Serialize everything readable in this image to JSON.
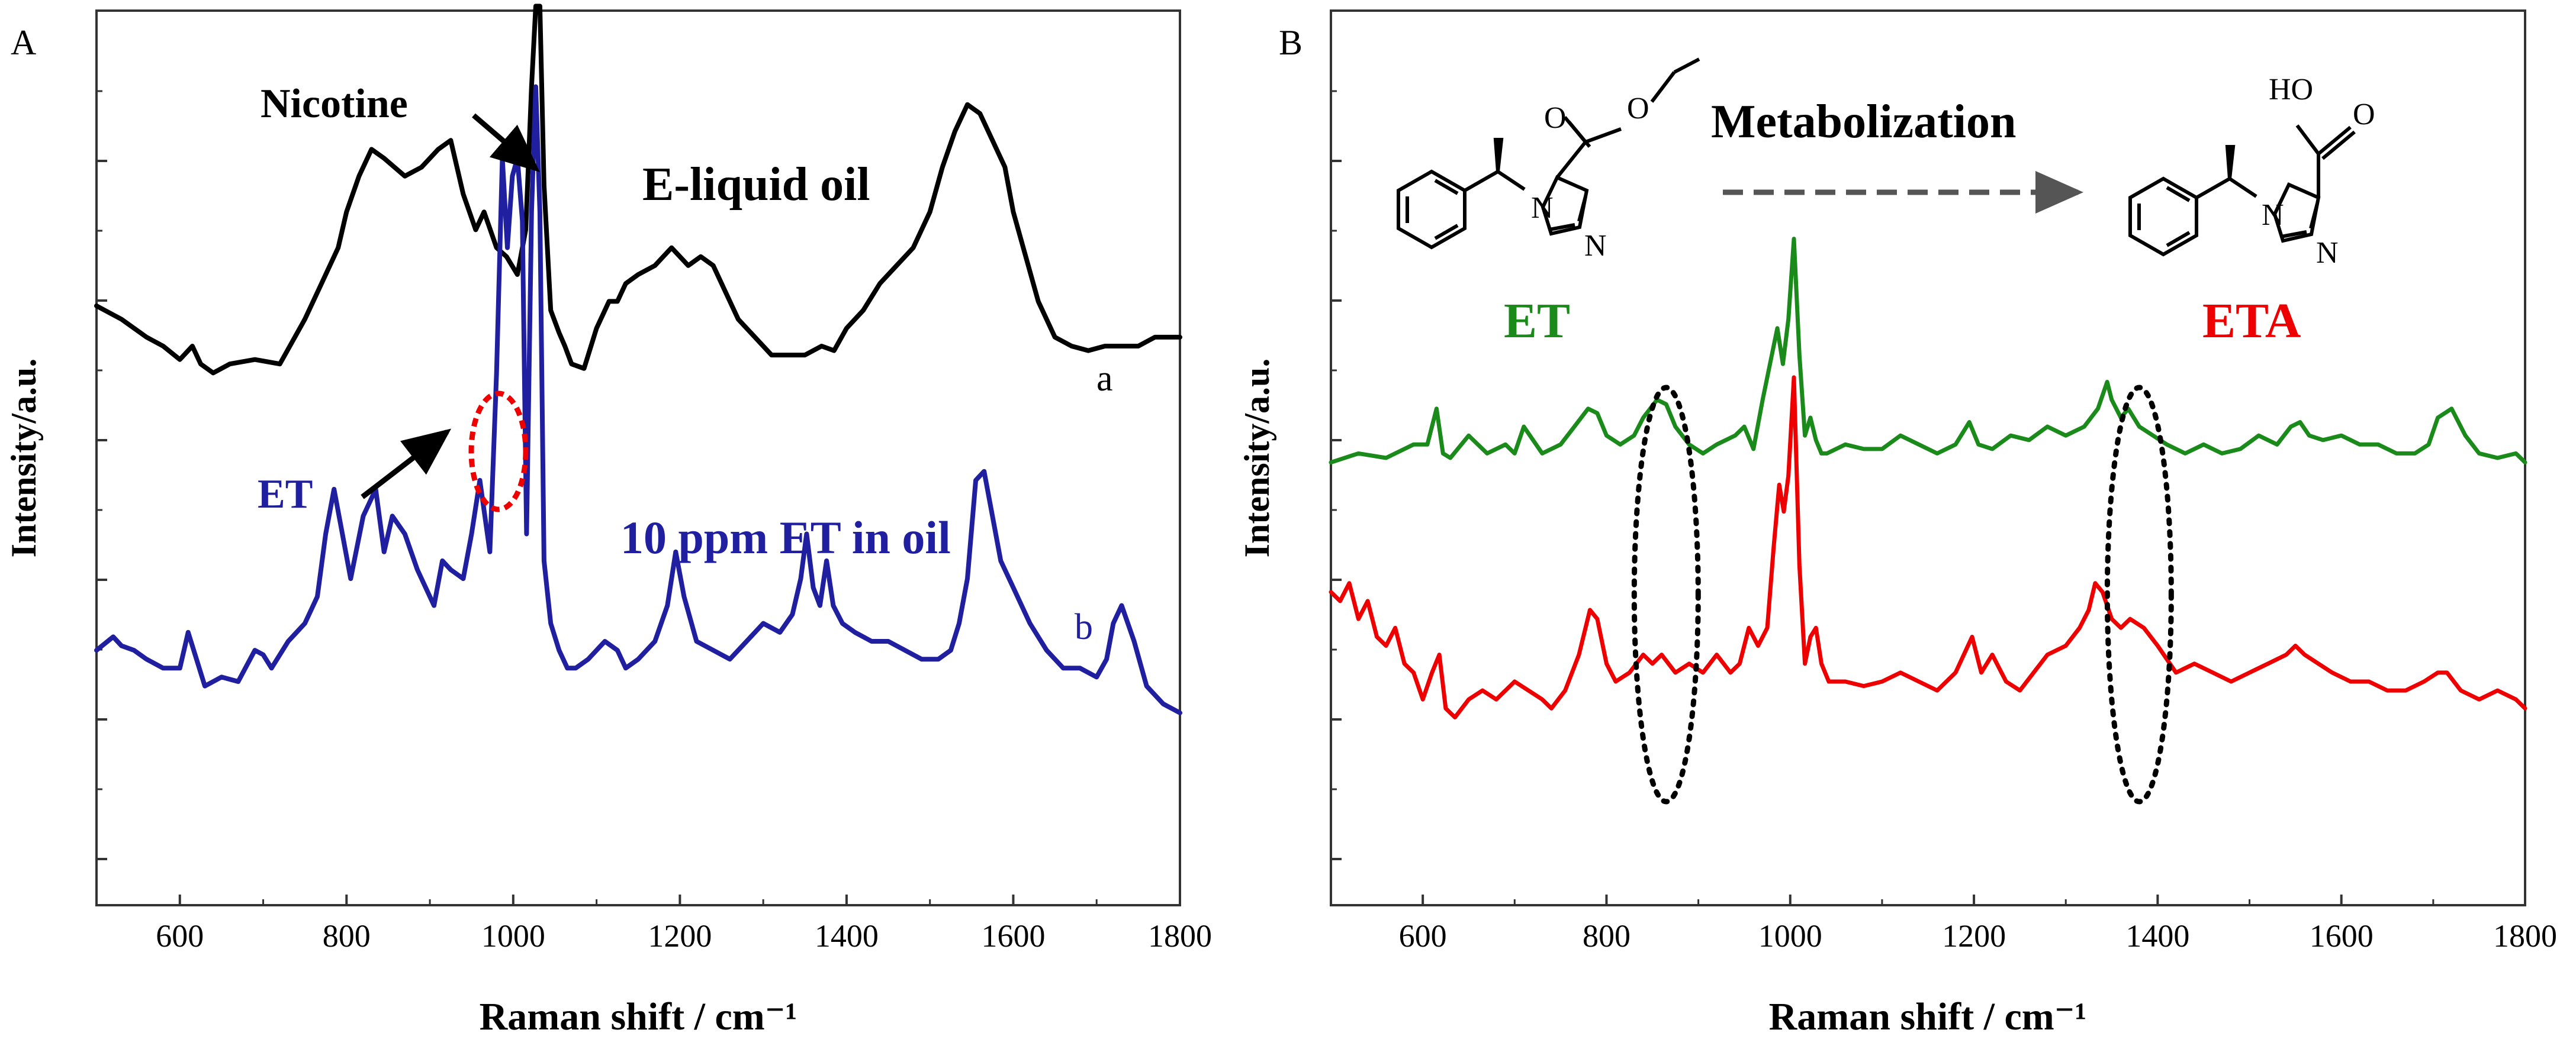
{
  "chart_data": [
    {
      "panel": "A",
      "type": "line",
      "xlabel": "Raman shift / cm⁻¹",
      "ylabel": "Intensity/a.u.",
      "xlim": [
        500,
        1800
      ],
      "ylim": [
        0,
        1
      ],
      "xticks": [
        600,
        800,
        1000,
        1200,
        1400,
        1600,
        1800
      ],
      "grid": false,
      "series": [
        {
          "name": "E-liquid oil",
          "label": "a",
          "color": "#000000",
          "offset": 0.555,
          "x": [
            500,
            530,
            560,
            580,
            600,
            615,
            625,
            640,
            660,
            690,
            720,
            750,
            770,
            790,
            800,
            815,
            830,
            845,
            870,
            890,
            910,
            925,
            940,
            955,
            965,
            980,
            992,
            1005,
            1015,
            1022,
            1027,
            1032,
            1037,
            1045,
            1055,
            1062,
            1070,
            1085,
            1100,
            1115,
            1125,
            1135,
            1150,
            1170,
            1190,
            1210,
            1225,
            1240,
            1255,
            1270,
            1290,
            1310,
            1330,
            1350,
            1370,
            1385,
            1400,
            1420,
            1440,
            1460,
            1480,
            1500,
            1515,
            1530,
            1545,
            1560,
            1575,
            1590,
            1600,
            1615,
            1630,
            1650,
            1670,
            1690,
            1710,
            1730,
            1750,
            1770,
            1800
          ],
          "y": [
            0.115,
            0.1,
            0.08,
            0.07,
            0.055,
            0.07,
            0.05,
            0.04,
            0.05,
            0.055,
            0.05,
            0.1,
            0.14,
            0.18,
            0.22,
            0.26,
            0.29,
            0.28,
            0.26,
            0.27,
            0.29,
            0.3,
            0.24,
            0.2,
            0.22,
            0.18,
            0.17,
            0.15,
            0.2,
            0.36,
            0.45,
            0.45,
            0.25,
            0.11,
            0.085,
            0.07,
            0.05,
            0.045,
            0.09,
            0.12,
            0.12,
            0.14,
            0.15,
            0.16,
            0.18,
            0.16,
            0.17,
            0.16,
            0.13,
            0.1,
            0.08,
            0.06,
            0.06,
            0.06,
            0.07,
            0.065,
            0.09,
            0.11,
            0.14,
            0.16,
            0.18,
            0.22,
            0.27,
            0.31,
            0.34,
            0.33,
            0.3,
            0.27,
            0.22,
            0.17,
            0.12,
            0.08,
            0.07,
            0.065,
            0.07,
            0.07,
            0.07,
            0.08,
            0.08
          ]
        },
        {
          "name": "10 ppm ET in oil",
          "label": "b",
          "color": "#1f1fa0",
          "offset": 0.215,
          "x": [
            500,
            520,
            530,
            545,
            560,
            580,
            600,
            610,
            620,
            630,
            650,
            670,
            690,
            700,
            710,
            730,
            750,
            765,
            775,
            785,
            795,
            805,
            820,
            835,
            845,
            855,
            870,
            885,
            895,
            905,
            915,
            925,
            940,
            950,
            960,
            972,
            980,
            987,
            993,
            999,
            1005,
            1011,
            1016,
            1022,
            1027,
            1032,
            1037,
            1045,
            1055,
            1065,
            1075,
            1090,
            1110,
            1125,
            1135,
            1150,
            1170,
            1185,
            1195,
            1205,
            1220,
            1240,
            1260,
            1280,
            1300,
            1320,
            1335,
            1345,
            1352,
            1360,
            1368,
            1376,
            1384,
            1395,
            1410,
            1430,
            1450,
            1470,
            1490,
            1510,
            1525,
            1535,
            1545,
            1555,
            1565,
            1575,
            1585,
            1600,
            1620,
            1640,
            1660,
            1680,
            1700,
            1712,
            1720,
            1730,
            1745,
            1760,
            1780,
            1800
          ],
          "y": [
            0.07,
            0.085,
            0.075,
            0.07,
            0.06,
            0.05,
            0.05,
            0.09,
            0.06,
            0.03,
            0.04,
            0.035,
            0.07,
            0.065,
            0.05,
            0.08,
            0.1,
            0.13,
            0.2,
            0.25,
            0.2,
            0.15,
            0.22,
            0.25,
            0.18,
            0.22,
            0.2,
            0.16,
            0.14,
            0.12,
            0.17,
            0.16,
            0.15,
            0.2,
            0.26,
            0.18,
            0.38,
            0.62,
            0.52,
            0.6,
            0.62,
            0.55,
            0.2,
            0.56,
            0.7,
            0.56,
            0.17,
            0.1,
            0.07,
            0.05,
            0.05,
            0.06,
            0.08,
            0.07,
            0.05,
            0.06,
            0.08,
            0.12,
            0.18,
            0.13,
            0.08,
            0.07,
            0.06,
            0.08,
            0.1,
            0.09,
            0.11,
            0.15,
            0.2,
            0.14,
            0.12,
            0.17,
            0.12,
            0.1,
            0.09,
            0.08,
            0.08,
            0.07,
            0.06,
            0.06,
            0.07,
            0.1,
            0.15,
            0.26,
            0.27,
            0.22,
            0.17,
            0.14,
            0.1,
            0.07,
            0.05,
            0.05,
            0.04,
            0.06,
            0.1,
            0.12,
            0.08,
            0.03,
            0.01,
            0.0
          ]
        }
      ],
      "annotations": {
        "nicotine": "Nicotine",
        "sample_title": "E-liquid oil",
        "et_marker": "ET",
        "et_caption": "10 ppm ET in oil"
      }
    },
    {
      "panel": "B",
      "type": "line",
      "xlabel": "Raman shift / cm⁻¹",
      "ylabel": "Intensity/a.u.",
      "xlim": [
        500,
        1800
      ],
      "ylim": [
        0,
        1
      ],
      "xticks": [
        600,
        800,
        1000,
        1200,
        1400,
        1600,
        1800
      ],
      "grid": false,
      "series": [
        {
          "name": "ET",
          "color": "#1a8a1a",
          "offset": 0.495,
          "x": [
            500,
            530,
            560,
            590,
            605,
            615,
            622,
            630,
            650,
            670,
            690,
            700,
            710,
            730,
            750,
            765,
            780,
            790,
            800,
            815,
            830,
            840,
            855,
            865,
            875,
            890,
            905,
            920,
            940,
            950,
            960,
            970,
            980,
            986,
            992,
            998,
            1004,
            1010,
            1016,
            1022,
            1028,
            1034,
            1040,
            1060,
            1080,
            1100,
            1120,
            1140,
            1160,
            1180,
            1195,
            1205,
            1220,
            1240,
            1260,
            1280,
            1300,
            1320,
            1335,
            1345,
            1350,
            1360,
            1368,
            1380,
            1395,
            1410,
            1430,
            1450,
            1470,
            1490,
            1510,
            1530,
            1545,
            1555,
            1565,
            1580,
            1600,
            1620,
            1640,
            1660,
            1680,
            1695,
            1705,
            1720,
            1735,
            1750,
            1770,
            1790,
            1800
          ],
          "y": [
            0.0,
            0.01,
            0.005,
            0.02,
            0.02,
            0.06,
            0.01,
            0.005,
            0.03,
            0.01,
            0.02,
            0.01,
            0.04,
            0.01,
            0.02,
            0.04,
            0.06,
            0.055,
            0.03,
            0.02,
            0.03,
            0.05,
            0.07,
            0.065,
            0.04,
            0.02,
            0.01,
            0.02,
            0.03,
            0.04,
            0.015,
            0.07,
            0.12,
            0.15,
            0.11,
            0.16,
            0.25,
            0.12,
            0.03,
            0.05,
            0.025,
            0.01,
            0.01,
            0.02,
            0.015,
            0.015,
            0.03,
            0.02,
            0.01,
            0.02,
            0.045,
            0.02,
            0.015,
            0.03,
            0.025,
            0.04,
            0.03,
            0.04,
            0.06,
            0.09,
            0.07,
            0.05,
            0.06,
            0.04,
            0.03,
            0.02,
            0.01,
            0.02,
            0.01,
            0.015,
            0.03,
            0.02,
            0.04,
            0.045,
            0.03,
            0.025,
            0.03,
            0.02,
            0.02,
            0.01,
            0.01,
            0.02,
            0.05,
            0.06,
            0.03,
            0.01,
            0.005,
            0.01,
            0.0
          ]
        },
        {
          "name": "ETA",
          "color": "#ee0000",
          "offset": 0.19,
          "x": [
            500,
            510,
            520,
            530,
            540,
            550,
            560,
            570,
            580,
            590,
            600,
            610,
            618,
            625,
            635,
            650,
            665,
            680,
            700,
            715,
            730,
            740,
            755,
            770,
            782,
            790,
            800,
            810,
            825,
            840,
            850,
            860,
            875,
            890,
            905,
            920,
            935,
            945,
            955,
            965,
            975,
            982,
            988,
            993,
            998,
            1004,
            1010,
            1016,
            1022,
            1028,
            1034,
            1042,
            1060,
            1080,
            1100,
            1120,
            1140,
            1160,
            1180,
            1198,
            1208,
            1220,
            1235,
            1250,
            1265,
            1280,
            1300,
            1315,
            1325,
            1332,
            1340,
            1350,
            1360,
            1370,
            1385,
            1400,
            1420,
            1440,
            1460,
            1480,
            1500,
            1520,
            1540,
            1550,
            1560,
            1575,
            1590,
            1610,
            1630,
            1650,
            1670,
            1690,
            1705,
            1715,
            1730,
            1750,
            1770,
            1790,
            1800
          ],
          "y": [
            0.16,
            0.15,
            0.17,
            0.13,
            0.15,
            0.11,
            0.1,
            0.12,
            0.08,
            0.07,
            0.04,
            0.07,
            0.09,
            0.03,
            0.02,
            0.04,
            0.05,
            0.04,
            0.06,
            0.05,
            0.04,
            0.03,
            0.05,
            0.09,
            0.14,
            0.13,
            0.08,
            0.06,
            0.07,
            0.09,
            0.08,
            0.09,
            0.07,
            0.08,
            0.07,
            0.09,
            0.07,
            0.08,
            0.12,
            0.1,
            0.12,
            0.21,
            0.28,
            0.25,
            0.29,
            0.4,
            0.19,
            0.08,
            0.11,
            0.12,
            0.08,
            0.06,
            0.06,
            0.055,
            0.06,
            0.07,
            0.06,
            0.05,
            0.07,
            0.11,
            0.07,
            0.09,
            0.06,
            0.05,
            0.07,
            0.09,
            0.1,
            0.12,
            0.14,
            0.17,
            0.16,
            0.13,
            0.12,
            0.13,
            0.12,
            0.1,
            0.07,
            0.08,
            0.07,
            0.06,
            0.07,
            0.08,
            0.09,
            0.1,
            0.09,
            0.08,
            0.07,
            0.06,
            0.06,
            0.05,
            0.05,
            0.06,
            0.07,
            0.07,
            0.05,
            0.04,
            0.05,
            0.04,
            0.03
          ]
        }
      ],
      "annotations": {
        "metabolization": "Metabolization",
        "et_label": "ET",
        "eta_label": "ETA",
        "ho_label": "HO",
        "o_label": "O",
        "n_label": "N"
      },
      "highlight_bands_cm": [
        865,
        1380
      ]
    }
  ],
  "panel_labels": [
    "A",
    "B"
  ],
  "curve_labels": [
    "a",
    "b"
  ]
}
